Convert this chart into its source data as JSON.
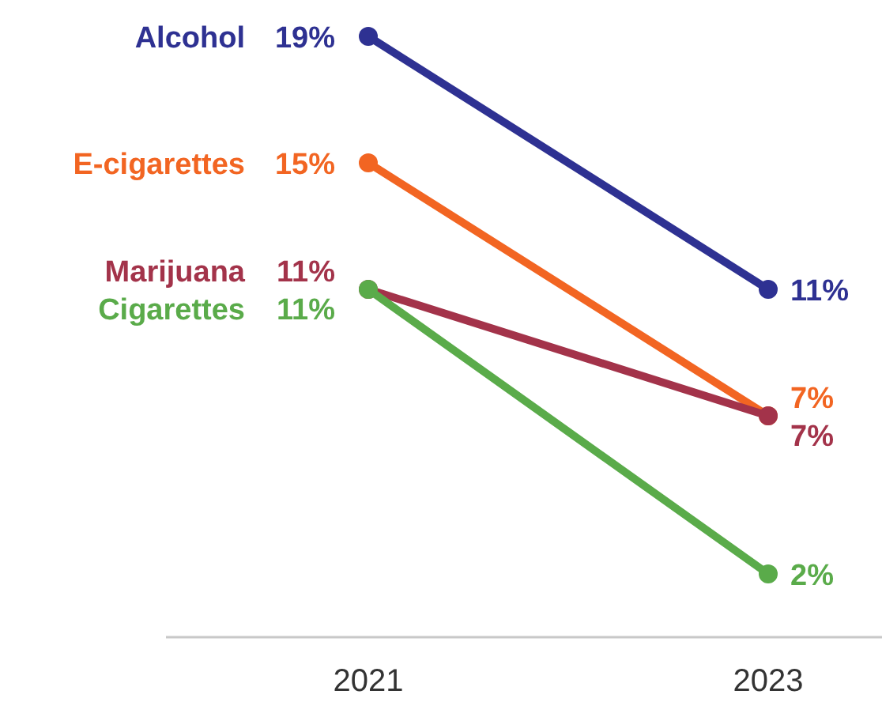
{
  "chart_data": {
    "type": "line",
    "categories": [
      "2021",
      "2023"
    ],
    "series": [
      {
        "name": "Alcohol",
        "color": "#2e3192",
        "values": [
          19,
          11
        ],
        "value_labels": [
          "19%",
          "11%"
        ]
      },
      {
        "name": "E-cigarettes",
        "color": "#f26522",
        "values": [
          15,
          7
        ],
        "value_labels": [
          "15%",
          "7%"
        ]
      },
      {
        "name": "Marijuana",
        "color": "#a3334a",
        "values": [
          11,
          7
        ],
        "value_labels": [
          "11%",
          "7%"
        ]
      },
      {
        "name": "Cigarettes",
        "color": "#5aab4a",
        "values": [
          11,
          2
        ],
        "value_labels": [
          "11%",
          "2%"
        ]
      }
    ],
    "marker": "circle",
    "line_style": "solid"
  }
}
